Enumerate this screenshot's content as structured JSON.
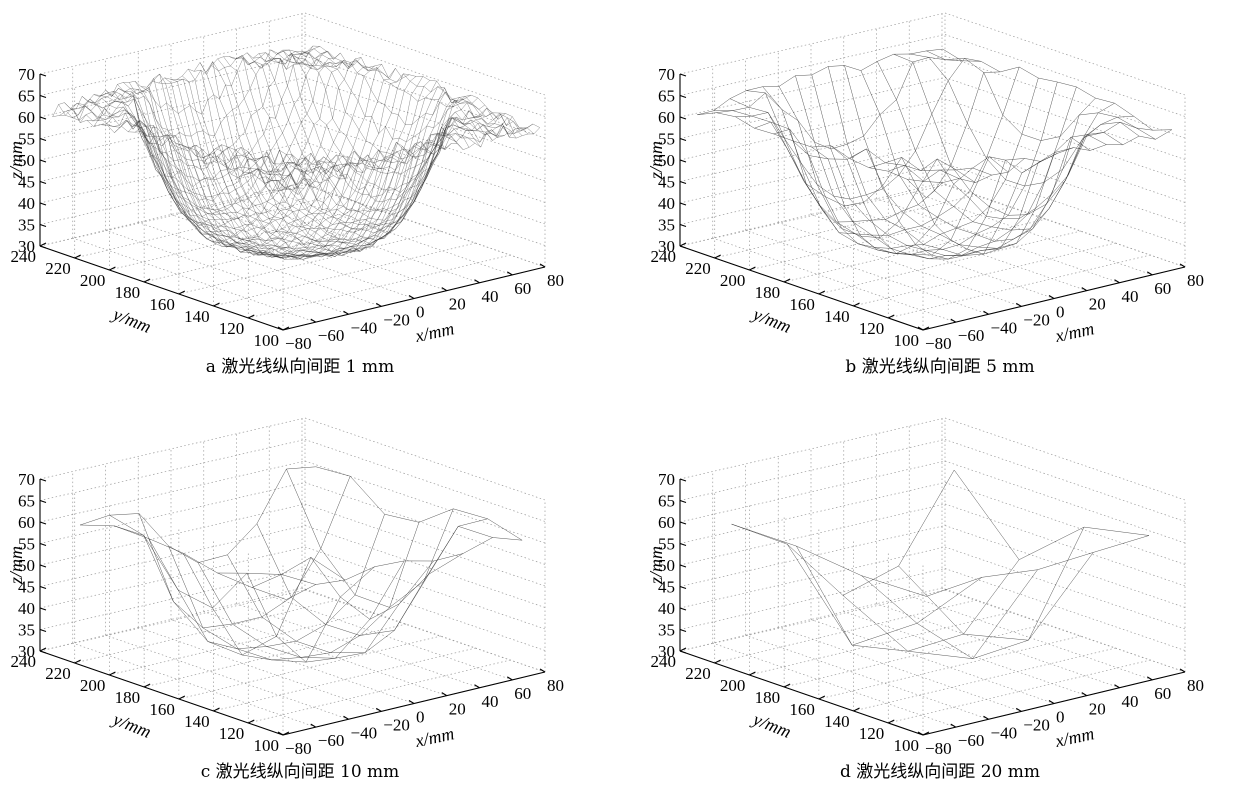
{
  "chart_data": [
    {
      "type": "surface",
      "caption": "a 激光线纵向间距 1 mm",
      "xlabel": "x/mm",
      "ylabel": "y/mm",
      "zlabel": "z/mm",
      "x_ticks": [
        "−80",
        "−60",
        "−40",
        "−20",
        "0",
        "20",
        "40",
        "60",
        "80"
      ],
      "y_ticks": [
        "240",
        "220",
        "200",
        "180",
        "160",
        "140",
        "120",
        "100"
      ],
      "z_ticks": [
        "70",
        "65",
        "60",
        "55",
        "50",
        "45",
        "40",
        "35",
        "30"
      ],
      "xlim": [
        -80,
        80
      ],
      "ylim": [
        100,
        240
      ],
      "zlim": [
        30,
        70
      ],
      "spacing_mm": 1,
      "grid": true
    },
    {
      "type": "surface",
      "caption": "b 激光线纵向间距 5 mm",
      "xlabel": "x/mm",
      "ylabel": "y/mm",
      "zlabel": "z/mm",
      "x_ticks": [
        "−80",
        "−60",
        "−40",
        "−20",
        "0",
        "20",
        "40",
        "60",
        "80"
      ],
      "y_ticks": [
        "240",
        "220",
        "200",
        "180",
        "160",
        "140",
        "120",
        "100"
      ],
      "z_ticks": [
        "70",
        "65",
        "60",
        "55",
        "50",
        "45",
        "40",
        "35",
        "30"
      ],
      "xlim": [
        -80,
        80
      ],
      "ylim": [
        100,
        240
      ],
      "zlim": [
        30,
        70
      ],
      "spacing_mm": 5,
      "grid": true
    },
    {
      "type": "surface",
      "caption": "c 激光线纵向间距 10 mm",
      "xlabel": "x/mm",
      "ylabel": "y/mm",
      "zlabel": "z/mm",
      "x_ticks": [
        "−80",
        "−60",
        "−40",
        "−20",
        "0",
        "20",
        "40",
        "60",
        "80"
      ],
      "y_ticks": [
        "240",
        "220",
        "200",
        "180",
        "160",
        "140",
        "120",
        "100"
      ],
      "z_ticks": [
        "70",
        "65",
        "60",
        "55",
        "50",
        "45",
        "40",
        "35",
        "30"
      ],
      "xlim": [
        -80,
        80
      ],
      "ylim": [
        100,
        240
      ],
      "zlim": [
        30,
        70
      ],
      "spacing_mm": 10,
      "grid": true
    },
    {
      "type": "surface",
      "caption": "d 激光线纵向间距 20 mm",
      "xlabel": "x/mm",
      "ylabel": "y/mm",
      "zlabel": "z/mm",
      "x_ticks": [
        "−80",
        "−60",
        "−40",
        "−20",
        "0",
        "20",
        "40",
        "60",
        "80"
      ],
      "y_ticks": [
        "240",
        "220",
        "200",
        "180",
        "160",
        "140",
        "120",
        "100"
      ],
      "z_ticks": [
        "70",
        "65",
        "60",
        "55",
        "50",
        "45",
        "40",
        "35",
        "30"
      ],
      "xlim": [
        -80,
        80
      ],
      "ylim": [
        100,
        240
      ],
      "zlim": [
        30,
        70
      ],
      "spacing_mm": 20,
      "grid": true
    }
  ]
}
